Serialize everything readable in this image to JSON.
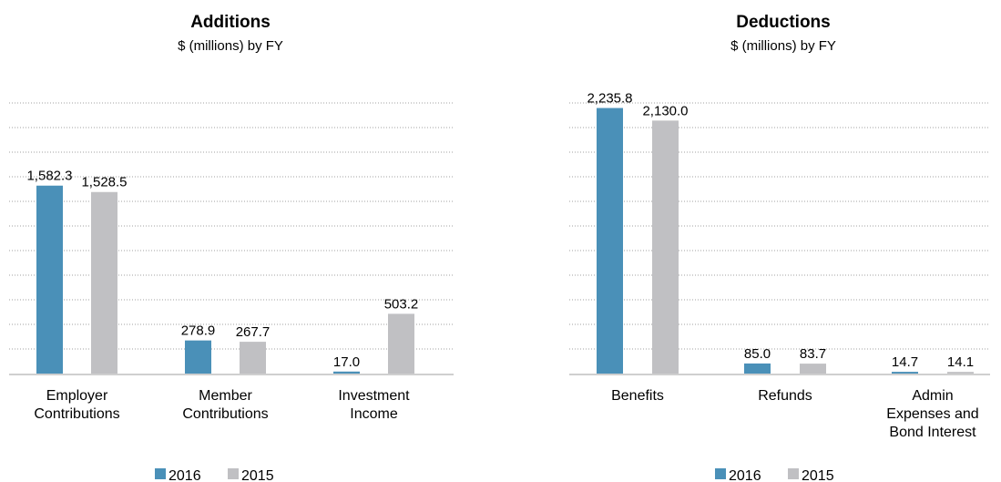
{
  "colors": {
    "series_2016": "#4a90b8",
    "series_2015": "#c0c0c3",
    "grid": "#a0a0a0",
    "axis": "#cfcfcf"
  },
  "chart_data": [
    {
      "type": "bar",
      "title": "Additions",
      "subtitle": "$ (millions) by FY",
      "xlabel": "",
      "ylabel": "",
      "categories": [
        [
          "Employer",
          "Contributions"
        ],
        [
          "Member",
          "Contributions"
        ],
        [
          "Investment",
          "Income"
        ]
      ],
      "series": [
        {
          "name": "2016",
          "values": [
            1582.3,
            278.9,
            17.0
          ],
          "labels": [
            "1,582.3",
            "278.9",
            "17.0"
          ]
        },
        {
          "name": "2015",
          "values": [
            1528.5,
            267.7,
            503.2
          ],
          "labels": [
            "1,528.5",
            "267.7",
            "503.2"
          ]
        }
      ],
      "ylim": [
        0,
        2263
      ],
      "grid": true,
      "gridlines": 11,
      "legend": "bottom"
    },
    {
      "type": "bar",
      "title": "Deductions",
      "subtitle": "$ (millions) by FY",
      "xlabel": "",
      "ylabel": "",
      "categories": [
        [
          "Benefits"
        ],
        [
          "Refunds"
        ],
        [
          "Admin",
          "Expenses and",
          "Bond Interest"
        ]
      ],
      "series": [
        {
          "name": "2016",
          "values": [
            2235.8,
            85.0,
            14.7
          ],
          "labels": [
            "2,235.8",
            "85.0",
            "14.7"
          ]
        },
        {
          "name": "2015",
          "values": [
            2130.0,
            83.7,
            14.1
          ],
          "labels": [
            "2,130.0",
            "83.7",
            "14.1"
          ]
        }
      ],
      "ylim": [
        0,
        2263
      ],
      "grid": true,
      "gridlines": 11,
      "legend": "bottom"
    }
  ]
}
